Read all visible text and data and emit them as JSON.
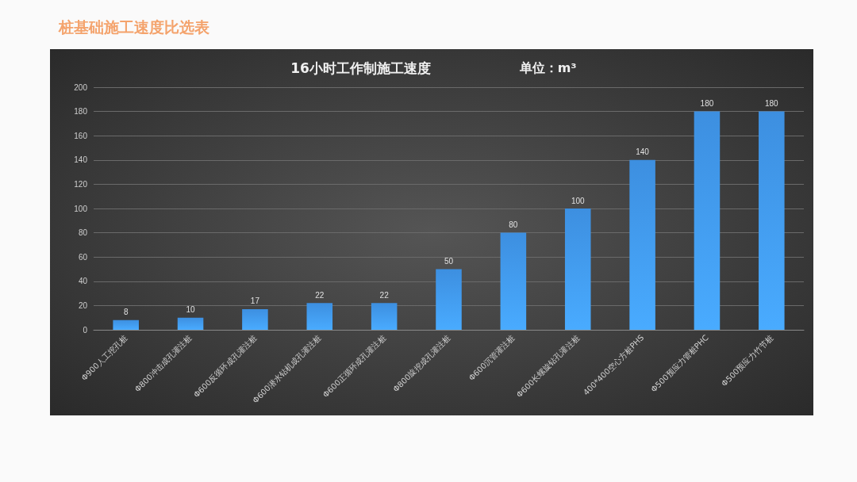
{
  "chart_data": {
    "type": "bar",
    "title": "16小时工作制施工速度",
    "subtitle": "单位：m³",
    "annotations": [
      "桩基础施工速度比选表"
    ],
    "categories": [
      "Φ900人工挖孔桩",
      "Φ800冲击成孔灌注桩",
      "Φ600反循环成孔灌注桩",
      "Φ600潜水钻机成孔灌注桩",
      "Φ600正循环成孔灌注桩",
      "Φ800旋挖成孔灌注桩",
      "Φ600沉管灌注桩",
      "Φ600长螺旋钻孔灌注桩",
      "400*400空心方桩PHS",
      "Φ500预应力管桩PHC",
      "Φ500预应力竹节桩"
    ],
    "values": [
      8,
      10,
      17,
      22,
      22,
      50,
      80,
      100,
      140,
      180,
      180
    ],
    "color": "#3d8fe0",
    "ylim": [
      0,
      200
    ],
    "yticks": [
      0,
      20,
      40,
      60,
      80,
      100,
      120,
      140,
      160,
      180,
      200
    ],
    "grid": true,
    "data_labels": true
  }
}
